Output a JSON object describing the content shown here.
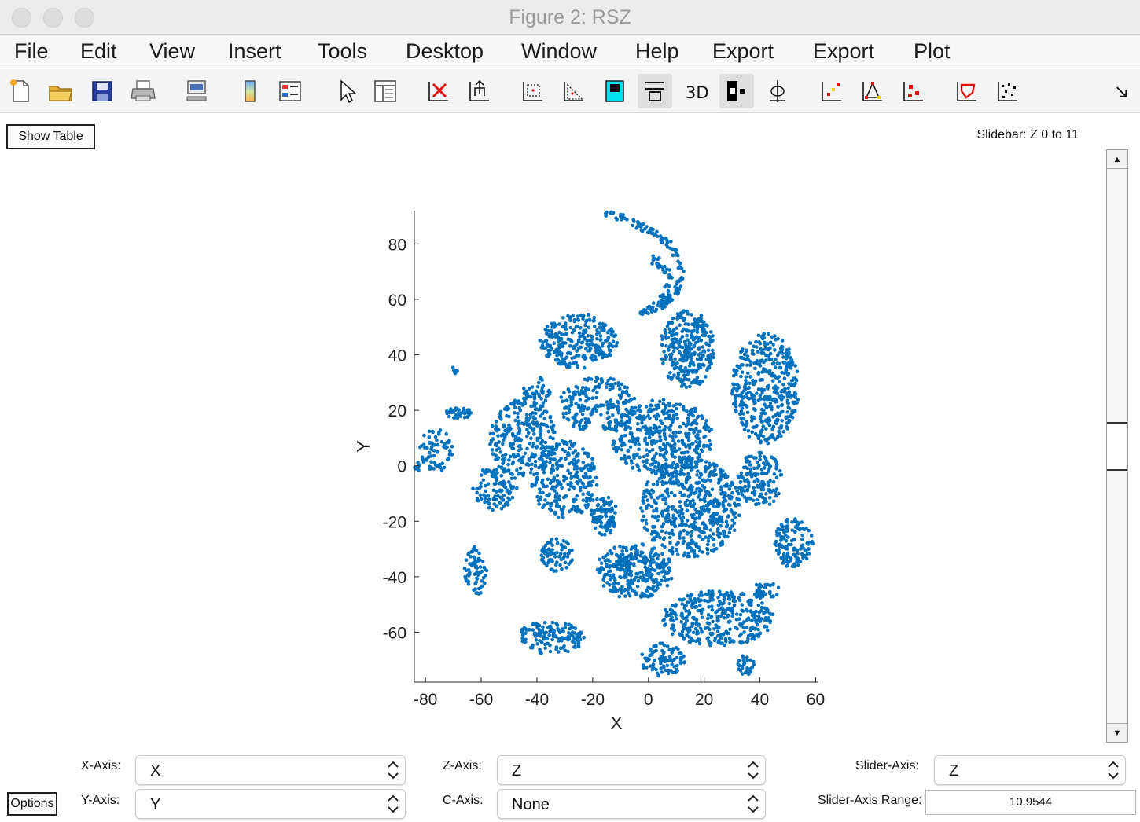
{
  "window": {
    "title": "Figure 2: RSZ"
  },
  "menu": [
    "File",
    "Edit",
    "View",
    "Insert",
    "Tools",
    "Desktop",
    "Window",
    "Help",
    "Export",
    "Export",
    "Plot"
  ],
  "toolbar": {
    "icons": [
      "new-figure-icon",
      "open-file-icon",
      "save-icon",
      "print-icon",
      "link-icon",
      "colorbar-icon",
      "legend-icon",
      "pointer-icon",
      "property-editor-icon",
      "delete-icon",
      "export-plot-icon",
      "zoom-box-icon",
      "zoom-triangle-icon",
      "fill-color-icon",
      "layout-icon",
      "3d-icon",
      "toggle-view-icon",
      "rotate-icon",
      "scatter-red-yellow-icon",
      "scatter-triangle-icon",
      "scatter-red-icon",
      "polygon-select-icon",
      "scatter-black-icon",
      "expand-icon"
    ]
  },
  "show_table_label": "Show Table",
  "slidebar_label": "Slidebar: Z 0 to 11",
  "chart_data": {
    "type": "scatter",
    "xlabel": "X",
    "ylabel": "Y",
    "xlim": [
      -84,
      61
    ],
    "ylim": [
      -78,
      92
    ],
    "xticks": [
      -80,
      -60,
      -40,
      -20,
      0,
      20,
      40,
      60
    ],
    "yticks": [
      -60,
      -40,
      -20,
      0,
      20,
      40,
      60,
      80
    ],
    "marker_color": "#0072BD",
    "grid": false,
    "series": [
      {
        "clusters": [
          {
            "kind": "arc",
            "x": [
              -15,
              -8,
              0,
              8,
              12,
              10,
              5,
              -3
            ],
            "y": [
              91,
              89,
              85,
              80,
              72,
              62,
              58,
              55
            ],
            "n": 140
          },
          {
            "kind": "arc",
            "x": [
              -3,
              2,
              6,
              8,
              5,
              1
            ],
            "y": [
              55,
              58,
              62,
              68,
              72,
              75
            ],
            "n": 50
          },
          {
            "kind": "blob",
            "cx": -25,
            "cy": 45,
            "rx": 14,
            "ry": 10,
            "n": 260
          },
          {
            "kind": "blob",
            "cx": 14,
            "cy": 42,
            "rx": 10,
            "ry": 14,
            "n": 300
          },
          {
            "kind": "blob",
            "cx": 42,
            "cy": 28,
            "rx": 12,
            "ry": 20,
            "n": 420
          },
          {
            "kind": "blob",
            "cx": -18,
            "cy": 22,
            "rx": 14,
            "ry": 10,
            "n": 200
          },
          {
            "kind": "blob",
            "cx": -45,
            "cy": 10,
            "rx": 12,
            "ry": 14,
            "n": 260
          },
          {
            "kind": "blob",
            "cx": -30,
            "cy": -5,
            "rx": 12,
            "ry": 14,
            "n": 260
          },
          {
            "kind": "blob",
            "cx": -55,
            "cy": -8,
            "rx": 8,
            "ry": 8,
            "n": 110
          },
          {
            "kind": "blob",
            "cx": 5,
            "cy": 10,
            "rx": 18,
            "ry": 14,
            "n": 420
          },
          {
            "kind": "blob",
            "cx": 15,
            "cy": -15,
            "rx": 18,
            "ry": 18,
            "n": 560
          },
          {
            "kind": "blob",
            "cx": 40,
            "cy": -5,
            "rx": 8,
            "ry": 10,
            "n": 140
          },
          {
            "kind": "blob",
            "cx": -5,
            "cy": -38,
            "rx": 14,
            "ry": 10,
            "n": 300
          },
          {
            "kind": "blob",
            "cx": -16,
            "cy": -18,
            "rx": 5,
            "ry": 7,
            "n": 90
          },
          {
            "kind": "blob",
            "cx": 52,
            "cy": -28,
            "rx": 7,
            "ry": 9,
            "n": 130
          },
          {
            "kind": "blob",
            "cx": 25,
            "cy": -55,
            "rx": 20,
            "ry": 10,
            "n": 360
          },
          {
            "kind": "blob",
            "cx": 5,
            "cy": -70,
            "rx": 8,
            "ry": 6,
            "n": 90
          },
          {
            "kind": "blob",
            "cx": -35,
            "cy": -62,
            "rx": 12,
            "ry": 6,
            "n": 140
          },
          {
            "kind": "blob",
            "cx": -33,
            "cy": -32,
            "rx": 6,
            "ry": 6,
            "n": 70
          },
          {
            "kind": "blob",
            "cx": -62,
            "cy": -38,
            "rx": 4,
            "ry": 9,
            "n": 70
          },
          {
            "kind": "blob",
            "cx": -76,
            "cy": 6,
            "rx": 6,
            "ry": 8,
            "n": 70
          },
          {
            "kind": "blob",
            "cx": -68,
            "cy": 19,
            "rx": 5,
            "ry": 2,
            "n": 40
          },
          {
            "kind": "blob",
            "cx": -40,
            "cy": 26,
            "rx": 5,
            "ry": 6,
            "n": 50
          },
          {
            "kind": "blob",
            "cx": 42,
            "cy": -45,
            "rx": 5,
            "ry": 3,
            "n": 40
          },
          {
            "kind": "blob",
            "cx": 35,
            "cy": -72,
            "rx": 3,
            "ry": 4,
            "n": 30
          },
          {
            "kind": "blob",
            "cx": -70,
            "cy": 34,
            "rx": 1.5,
            "ry": 1.5,
            "n": 8
          },
          {
            "kind": "blob",
            "cx": -83,
            "cy": 0,
            "rx": 1,
            "ry": 2,
            "n": 8
          }
        ]
      }
    ]
  },
  "controls": {
    "x_axis": {
      "label": "X-Axis:",
      "value": "X"
    },
    "y_axis": {
      "label": "Y-Axis:",
      "value": "Y"
    },
    "z_axis": {
      "label": "Z-Axis:",
      "value": "Z"
    },
    "c_axis": {
      "label": "C-Axis:",
      "value": "None"
    },
    "slider_axis": {
      "label": "Slider-Axis:",
      "value": "Z"
    },
    "slider_axis_range": {
      "label": "Slider-Axis Range:",
      "value": "10.9544"
    },
    "options_label": "Options"
  },
  "slider": {
    "position": 0.5
  }
}
